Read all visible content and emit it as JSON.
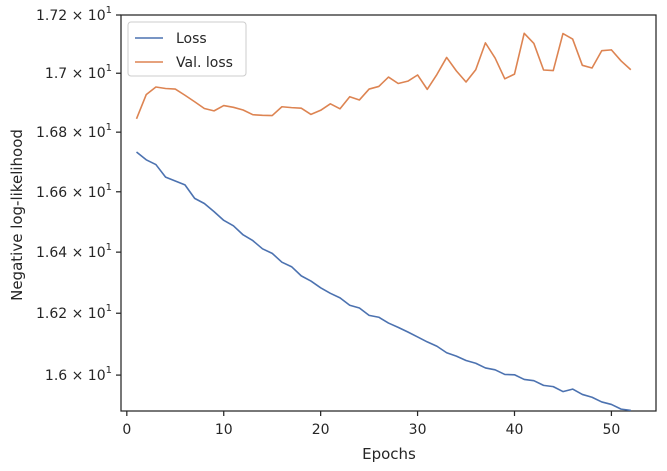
{
  "chart_data": {
    "type": "line",
    "xlabel": "Epochs",
    "ylabel": "Negative log-likelihood",
    "xlim": [
      -0.6,
      54.6
    ],
    "ylim": [
      15.885,
      17.2
    ],
    "y_scale": "log",
    "grid": false,
    "legend_position": "top-left",
    "x_ticks": [
      0,
      10,
      20,
      30,
      40,
      50
    ],
    "y_ticks": [
      {
        "value": 16.0,
        "mantissa": "1.6",
        "times": "×",
        "base": "10",
        "exponent": "1"
      },
      {
        "value": 16.2,
        "mantissa": "1.62",
        "times": "×",
        "base": "10",
        "exponent": "1"
      },
      {
        "value": 16.4,
        "mantissa": "1.64",
        "times": "×",
        "base": "10",
        "exponent": "1"
      },
      {
        "value": 16.6,
        "mantissa": "1.66",
        "times": "×",
        "base": "10",
        "exponent": "1"
      },
      {
        "value": 16.8,
        "mantissa": "1.68",
        "times": "×",
        "base": "10",
        "exponent": "1"
      },
      {
        "value": 17.0,
        "mantissa": "1.7",
        "times": "×",
        "base": "10",
        "exponent": "1"
      },
      {
        "value": 17.2,
        "mantissa": "1.72",
        "times": "×",
        "base": "10",
        "exponent": "1"
      }
    ],
    "x": [
      1,
      2,
      3,
      4,
      5,
      6,
      7,
      8,
      9,
      10,
      11,
      12,
      13,
      14,
      15,
      16,
      17,
      18,
      19,
      20,
      21,
      22,
      23,
      24,
      25,
      26,
      27,
      28,
      29,
      30,
      31,
      32,
      33,
      34,
      35,
      36,
      37,
      38,
      39,
      40,
      41,
      42,
      43,
      44,
      45,
      46,
      47,
      48,
      49,
      50,
      51,
      52
    ],
    "series": [
      {
        "name": "Loss",
        "color": "#4c72b0",
        "values": [
          16.733,
          16.707,
          16.691,
          16.649,
          16.636,
          16.623,
          16.578,
          16.561,
          16.534,
          16.505,
          16.487,
          16.457,
          16.438,
          16.411,
          16.396,
          16.367,
          16.352,
          16.322,
          16.305,
          16.283,
          16.265,
          16.25,
          16.226,
          16.217,
          16.193,
          16.187,
          16.168,
          16.154,
          16.139,
          16.123,
          16.107,
          16.093,
          16.072,
          16.061,
          16.047,
          16.038,
          16.023,
          16.017,
          16.002,
          16.001,
          15.986,
          15.982,
          15.967,
          15.963,
          15.947,
          15.955,
          15.938,
          15.929,
          15.914,
          15.906,
          15.891,
          15.887
        ]
      },
      {
        "name": "Val. loss",
        "color": "#dd8452",
        "values": [
          16.845,
          16.927,
          16.953,
          16.948,
          16.946,
          16.925,
          16.903,
          16.88,
          16.872,
          16.89,
          16.884,
          16.875,
          16.859,
          16.857,
          16.856,
          16.886,
          16.883,
          16.881,
          16.86,
          16.874,
          16.896,
          16.879,
          16.92,
          16.909,
          16.946,
          16.955,
          16.987,
          16.965,
          16.973,
          16.994,
          16.945,
          16.996,
          17.054,
          17.008,
          16.97,
          17.012,
          17.104,
          17.052,
          16.981,
          16.997,
          17.137,
          17.102,
          17.011,
          17.009,
          17.136,
          17.117,
          17.027,
          17.018,
          17.077,
          17.08,
          17.042,
          17.012
        ]
      }
    ]
  }
}
